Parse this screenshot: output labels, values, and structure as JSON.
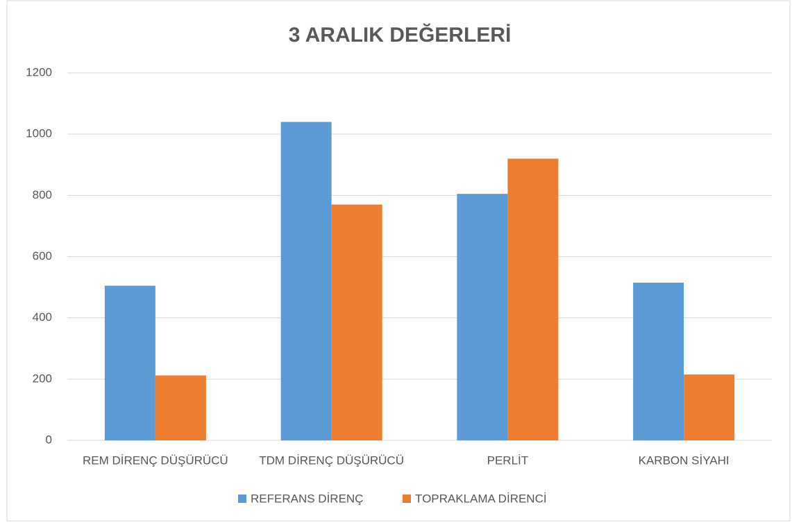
{
  "chart_data": {
    "type": "bar",
    "title": "3 ARALIK DEĞERLERİ",
    "categories": [
      "REM DİRENÇ DÜŞÜRÜCÜ",
      "TDM DİRENÇ DÜŞÜRÜCÜ",
      "PERLİT",
      "KARBON SİYAHI"
    ],
    "series": [
      {
        "name": "REFERANS DİRENÇ",
        "color": "#5b9bd5",
        "values": [
          505,
          1040,
          805,
          515
        ]
      },
      {
        "name": "TOPRAKLAMA DİRENCİ",
        "color": "#ed7d31",
        "values": [
          212,
          770,
          920,
          215
        ]
      }
    ],
    "ylim": [
      0,
      1200
    ],
    "yticks": [
      0,
      200,
      400,
      600,
      800,
      1000,
      1200
    ],
    "grid": true,
    "legend": "bottom"
  }
}
